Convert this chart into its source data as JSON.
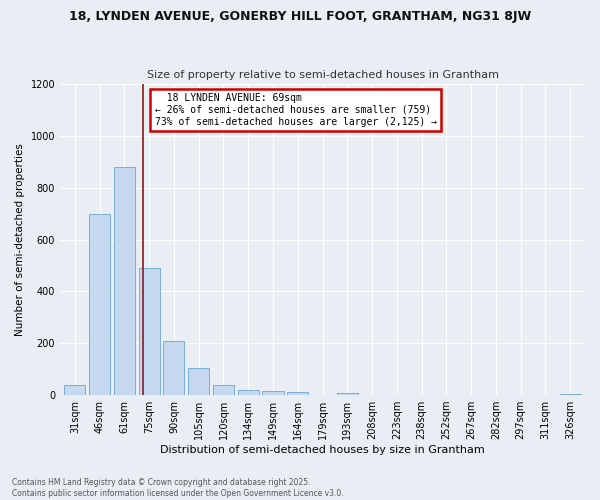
{
  "title1": "18, LYNDEN AVENUE, GONERBY HILL FOOT, GRANTHAM, NG31 8JW",
  "title2": "Size of property relative to semi-detached houses in Grantham",
  "xlabel": "Distribution of semi-detached houses by size in Grantham",
  "ylabel": "Number of semi-detached properties",
  "categories": [
    "31sqm",
    "46sqm",
    "61sqm",
    "75sqm",
    "90sqm",
    "105sqm",
    "120sqm",
    "134sqm",
    "149sqm",
    "164sqm",
    "179sqm",
    "193sqm",
    "208sqm",
    "223sqm",
    "238sqm",
    "252sqm",
    "267sqm",
    "282sqm",
    "297sqm",
    "311sqm",
    "326sqm"
  ],
  "values": [
    40,
    700,
    880,
    490,
    210,
    105,
    40,
    20,
    15,
    10,
    2,
    8,
    0,
    0,
    0,
    0,
    0,
    0,
    0,
    0,
    5
  ],
  "bar_color": "#c5d8ef",
  "bar_edge_color": "#7aaed6",
  "property_line_x": 2.75,
  "property_label": "18 LYNDEN AVENUE: 69sqm",
  "smaller_pct": 26,
  "smaller_count": 759,
  "larger_pct": 73,
  "larger_count": 2125,
  "annotation_box_color": "#ffffff",
  "annotation_box_edge": "#cc0000",
  "line_color": "#8b1a1a",
  "bg_color": "#e8eef4",
  "grid_color": "#ffffff",
  "footer1": "Contains HM Land Registry data © Crown copyright and database right 2025.",
  "footer2": "Contains public sector information licensed under the Open Government Licence v3.0.",
  "ylim": [
    0,
    1200
  ],
  "yticks": [
    0,
    200,
    400,
    600,
    800,
    1000,
    1200
  ]
}
